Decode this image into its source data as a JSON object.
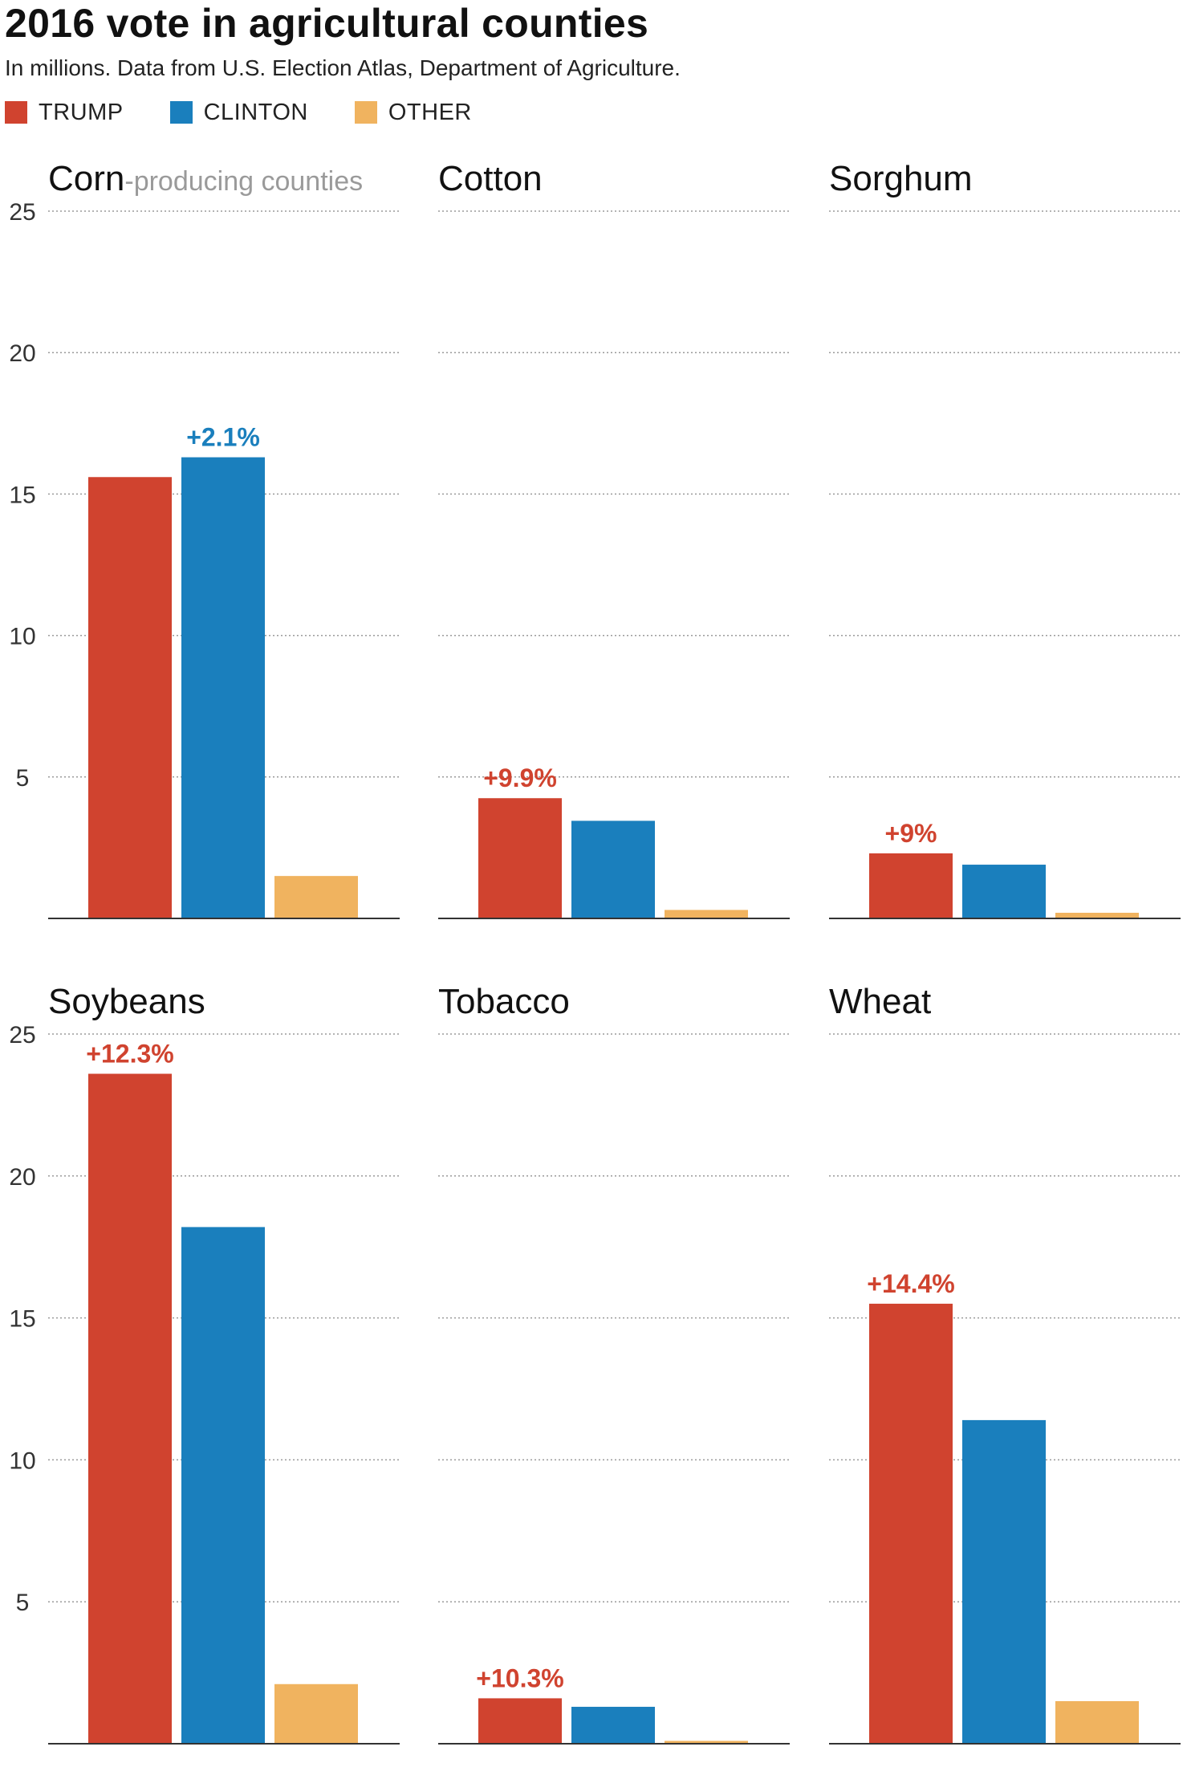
{
  "title": "2016 vote in agricultural counties",
  "subtitle": "In millions. Data from U.S. Election Atlas, Department of Agriculture.",
  "legend": [
    {
      "name": "TRUMP",
      "color": "#d0432f"
    },
    {
      "name": "CLINTON",
      "color": "#1a7fbd"
    },
    {
      "name": "OTHER",
      "color": "#f0b35f"
    }
  ],
  "chart_data": [
    {
      "type": "bar",
      "title": "Corn",
      "subtitle": "-producing counties",
      "categories": [
        "TRUMP",
        "CLINTON",
        "OTHER"
      ],
      "values": [
        15.6,
        16.3,
        1.5
      ],
      "annotation": {
        "text": "+2.1%",
        "category": "CLINTON",
        "color": "#1a7fbd"
      },
      "ylim": [
        0,
        25
      ],
      "yticks": [
        5,
        10,
        15,
        20,
        25
      ],
      "grid": true
    },
    {
      "type": "bar",
      "title": "Cotton",
      "subtitle": "",
      "categories": [
        "TRUMP",
        "CLINTON",
        "OTHER"
      ],
      "values": [
        4.25,
        3.45,
        0.3
      ],
      "annotation": {
        "text": "+9.9%",
        "category": "TRUMP",
        "color": "#d0432f"
      },
      "ylim": [
        0,
        25
      ],
      "yticks": [
        5,
        10,
        15,
        20,
        25
      ],
      "grid": true
    },
    {
      "type": "bar",
      "title": "Sorghum",
      "subtitle": "",
      "categories": [
        "TRUMP",
        "CLINTON",
        "OTHER"
      ],
      "values": [
        2.3,
        1.9,
        0.2
      ],
      "annotation": {
        "text": "+9%",
        "category": "TRUMP",
        "color": "#d0432f"
      },
      "ylim": [
        0,
        25
      ],
      "yticks": [
        5,
        10,
        15,
        20,
        25
      ],
      "grid": true
    },
    {
      "type": "bar",
      "title": "Soybeans",
      "subtitle": "",
      "categories": [
        "TRUMP",
        "CLINTON",
        "OTHER"
      ],
      "values": [
        23.6,
        18.2,
        2.1
      ],
      "annotation": {
        "text": "+12.3%",
        "category": "TRUMP",
        "color": "#d0432f"
      },
      "ylim": [
        0,
        25
      ],
      "yticks": [
        5,
        10,
        15,
        20,
        25
      ],
      "grid": true
    },
    {
      "type": "bar",
      "title": "Tobacco",
      "subtitle": "",
      "categories": [
        "TRUMP",
        "CLINTON",
        "OTHER"
      ],
      "values": [
        1.6,
        1.3,
        0.1
      ],
      "annotation": {
        "text": "+10.3%",
        "category": "TRUMP",
        "color": "#d0432f"
      },
      "ylim": [
        0,
        25
      ],
      "yticks": [
        5,
        10,
        15,
        20,
        25
      ],
      "grid": true
    },
    {
      "type": "bar",
      "title": "Wheat",
      "subtitle": "",
      "categories": [
        "TRUMP",
        "CLINTON",
        "OTHER"
      ],
      "values": [
        15.5,
        11.4,
        1.5
      ],
      "annotation": {
        "text": "+14.4%",
        "category": "TRUMP",
        "color": "#d0432f"
      },
      "ylim": [
        0,
        25
      ],
      "yticks": [
        5,
        10,
        15,
        20,
        25
      ],
      "grid": true
    }
  ]
}
